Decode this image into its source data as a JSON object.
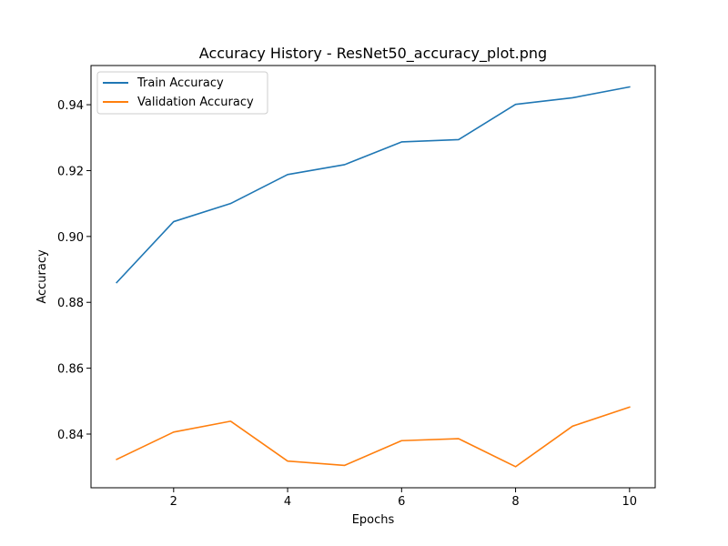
{
  "chart_data": {
    "type": "line",
    "title": "Accuracy History - ResNet50_accuracy_plot.png",
    "xlabel": "Epochs",
    "ylabel": "Accuracy",
    "x": [
      1,
      2,
      3,
      4,
      5,
      6,
      7,
      8,
      9,
      10
    ],
    "xlim": [
      0.55,
      10.45
    ],
    "ylim": [
      0.8237,
      0.9519
    ],
    "xticks": [
      2,
      4,
      6,
      8,
      10
    ],
    "yticks": [
      0.84,
      0.86,
      0.88,
      0.9,
      0.92,
      0.94
    ],
    "ytick_labels": [
      "0.84",
      "0.86",
      "0.88",
      "0.90",
      "0.92",
      "0.94"
    ],
    "grid": false,
    "legend_position": "top-left",
    "series": [
      {
        "name": "Train Accuracy",
        "color": "#1f77b4",
        "values": [
          0.886,
          0.9045,
          0.91,
          0.9188,
          0.9218,
          0.9287,
          0.9294,
          0.9401,
          0.9421,
          0.9454
        ]
      },
      {
        "name": "Validation Accuracy",
        "color": "#ff7f0e",
        "values": [
          0.8323,
          0.8406,
          0.8439,
          0.8318,
          0.8305,
          0.838,
          0.8386,
          0.8301,
          0.8424,
          0.8482
        ]
      }
    ]
  }
}
